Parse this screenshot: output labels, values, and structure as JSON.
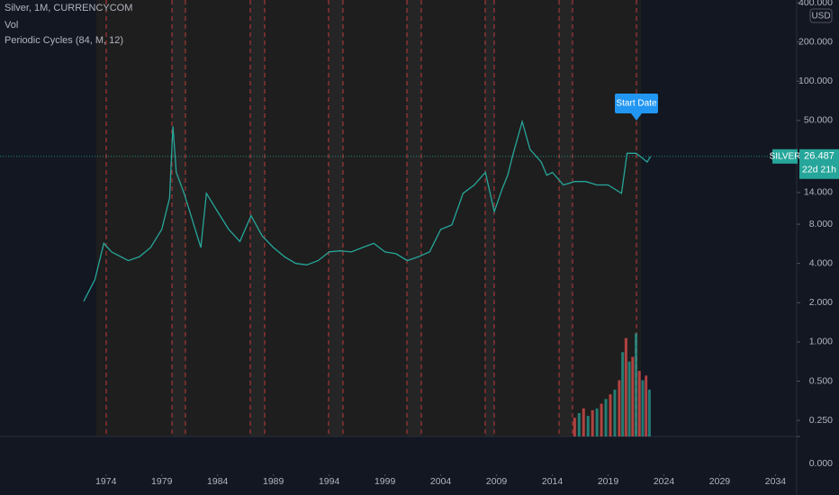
{
  "chart_data": {
    "type": "line",
    "title": "Silver, 1M, CURRENCYCOM",
    "indicators": [
      "Vol",
      "Periodic Cycles (84, M, 12)"
    ],
    "currency": "USD",
    "symbol": "SILVER",
    "last_price": 26.487,
    "countdown": "22d 21h",
    "marker_label": "Start Date",
    "log_scale": true,
    "xlim": [
      1964.5,
      2035.9
    ],
    "xticks": [
      1974,
      1979,
      1984,
      1989,
      1994,
      1999,
      2004,
      2009,
      2014,
      2019,
      2024,
      2029,
      2034
    ],
    "ylim": [
      0.188,
      420
    ],
    "yticks": [
      {
        "value": 400,
        "label": "400.000"
      },
      {
        "value": 200,
        "label": "200.000"
      },
      {
        "value": 100,
        "label": "100.000"
      },
      {
        "value": 50,
        "label": "50.000"
      },
      {
        "value": 14,
        "label": "14.000"
      },
      {
        "value": 8,
        "label": "8.000"
      },
      {
        "value": 4,
        "label": "4.000"
      },
      {
        "value": 2,
        "label": "2.000"
      },
      {
        "value": 1,
        "label": "1.000"
      },
      {
        "value": 0.5,
        "label": "0.500"
      },
      {
        "value": 0.25,
        "label": "0.250"
      }
    ],
    "y2lim": [
      0,
      1.2
    ],
    "y2ticks": [
      {
        "value": 0,
        "label": "0.000"
      }
    ],
    "series": [
      {
        "name": "Silver",
        "color": "#26a69a",
        "x": [
          1972.0,
          1973.0,
          1973.8,
          1974.5,
          1976.0,
          1977.0,
          1978.0,
          1979.0,
          1979.7,
          1980.0,
          1980.3,
          1981.0,
          1982.5,
          1983.0,
          1984.0,
          1985.0,
          1986.0,
          1987.0,
          1988.0,
          1989.0,
          1990.0,
          1991.0,
          1992.0,
          1993.0,
          1994.0,
          1995.0,
          1996.0,
          1997.0,
          1998.0,
          1999.0,
          2000.0,
          2001.0,
          2002.0,
          2003.0,
          2004.0,
          2005.0,
          2006.0,
          2007.0,
          2008.0,
          2008.8,
          2009.5,
          2010.0,
          2010.5,
          2011.3,
          2012.0,
          2013.0,
          2013.5,
          2014.0,
          2015.0,
          2016.0,
          2017.0,
          2018.0,
          2019.0,
          2020.2,
          2020.7,
          2021.5,
          2022.0,
          2022.5,
          2022.8
        ],
        "values": [
          2.05,
          3.0,
          5.7,
          4.9,
          4.2,
          4.5,
          5.3,
          7.3,
          12.7,
          45,
          20,
          13.8,
          5.3,
          13.8,
          10,
          7.3,
          5.9,
          9.3,
          6.5,
          5.3,
          4.5,
          4.0,
          3.9,
          4.2,
          4.9,
          5.0,
          4.9,
          5.3,
          5.7,
          4.9,
          4.75,
          4.2,
          4.5,
          4.9,
          7.3,
          7.9,
          13.8,
          16,
          20,
          10,
          14.9,
          19,
          28,
          49,
          30,
          24,
          19,
          20,
          16,
          17,
          17,
          16,
          16,
          13.8,
          28,
          28,
          26,
          24,
          26.5
        ]
      },
      {
        "name": "Vol",
        "axis": "y2",
        "colors": [
          "#ef5350",
          "#26a69a"
        ],
        "x": [
          2016.0,
          2016.4,
          2016.8,
          2017.2,
          2017.6,
          2018.0,
          2018.4,
          2018.8,
          2019.2,
          2019.6,
          2020.0,
          2020.3,
          2020.6,
          2020.9,
          2021.2,
          2021.5,
          2021.8,
          2022.1,
          2022.4,
          2022.7
        ],
        "values": [
          0.2,
          0.25,
          0.3,
          0.22,
          0.28,
          0.3,
          0.35,
          0.4,
          0.45,
          0.5,
          0.6,
          0.9,
          1.05,
          0.8,
          0.85,
          1.1,
          0.7,
          0.6,
          0.65,
          0.5
        ]
      }
    ]
  }
}
